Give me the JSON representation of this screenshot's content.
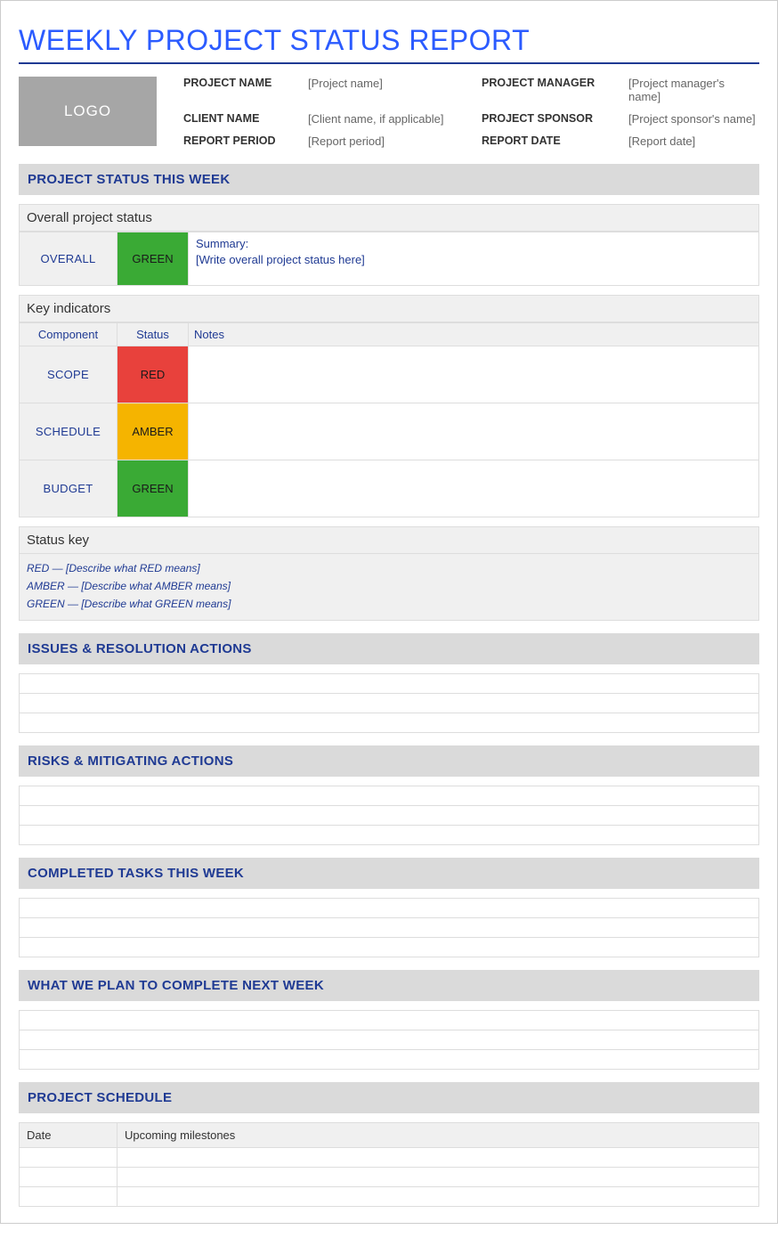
{
  "colors": {
    "title": "#2b5bff",
    "heading_text": "#1f3a93",
    "section_bg": "#dadada",
    "sub_bg": "#f0f0f0",
    "border": "#dddddd",
    "logo_bg": "#a6a6a6",
    "logo_text": "#ffffff",
    "meta_label": "#333333",
    "meta_value": "#666666",
    "status_green": "#3aaa35",
    "status_red": "#e8413c",
    "status_amber": "#f5b400"
  },
  "title": "WEEKLY PROJECT STATUS REPORT",
  "logo_text": "LOGO",
  "meta": {
    "project_name_label": "PROJECT NAME",
    "project_name_value": "[Project name]",
    "client_name_label": "CLIENT NAME",
    "client_name_value": "[Client name, if applicable]",
    "report_period_label": "REPORT PERIOD",
    "report_period_value": "[Report period]",
    "project_manager_label": "PROJECT MANAGER",
    "project_manager_value": "[Project manager's name]",
    "project_sponsor_label": "PROJECT SPONSOR",
    "project_sponsor_value": "[Project sponsor's name]",
    "report_date_label": "REPORT DATE",
    "report_date_value": "[Report date]"
  },
  "sections": {
    "status_this_week": "PROJECT STATUS THIS WEEK",
    "issues": "ISSUES & RESOLUTION ACTIONS",
    "risks": "RISKS & MITIGATING ACTIONS",
    "completed": "COMPLETED TASKS THIS WEEK",
    "next_week": "WHAT WE PLAN TO COMPLETE NEXT WEEK",
    "schedule": "PROJECT SCHEDULE"
  },
  "overall": {
    "subheader": "Overall project status",
    "component_label": "OVERALL",
    "status_label": "GREEN",
    "status_color_key": "green",
    "summary_label": "Summary:",
    "summary_text": "[Write overall project status here]"
  },
  "key_indicators": {
    "subheader": "Key indicators",
    "col_component": "Component",
    "col_status": "Status",
    "col_notes": "Notes",
    "rows": [
      {
        "component": "SCOPE",
        "status_label": "RED",
        "status_color_key": "red",
        "notes": ""
      },
      {
        "component": "SCHEDULE",
        "status_label": "AMBER",
        "status_color_key": "amber",
        "notes": ""
      },
      {
        "component": "BUDGET",
        "status_label": "GREEN",
        "status_color_key": "green",
        "notes": ""
      }
    ]
  },
  "status_key": {
    "title": "Status key",
    "lines": [
      "RED — [Describe what RED means]",
      "AMBER — [Describe what AMBER means]",
      "GREEN — [Describe what GREEN means]"
    ]
  },
  "issues_rows": [
    "",
    "",
    ""
  ],
  "risks_rows": [
    "",
    "",
    ""
  ],
  "completed_rows": [
    "",
    "",
    ""
  ],
  "next_week_rows": [
    "",
    "",
    ""
  ],
  "schedule": {
    "col_date": "Date",
    "col_milestones": "Upcoming milestones",
    "rows": [
      {
        "date": "",
        "milestone": ""
      },
      {
        "date": "",
        "milestone": ""
      },
      {
        "date": "",
        "milestone": ""
      }
    ]
  }
}
